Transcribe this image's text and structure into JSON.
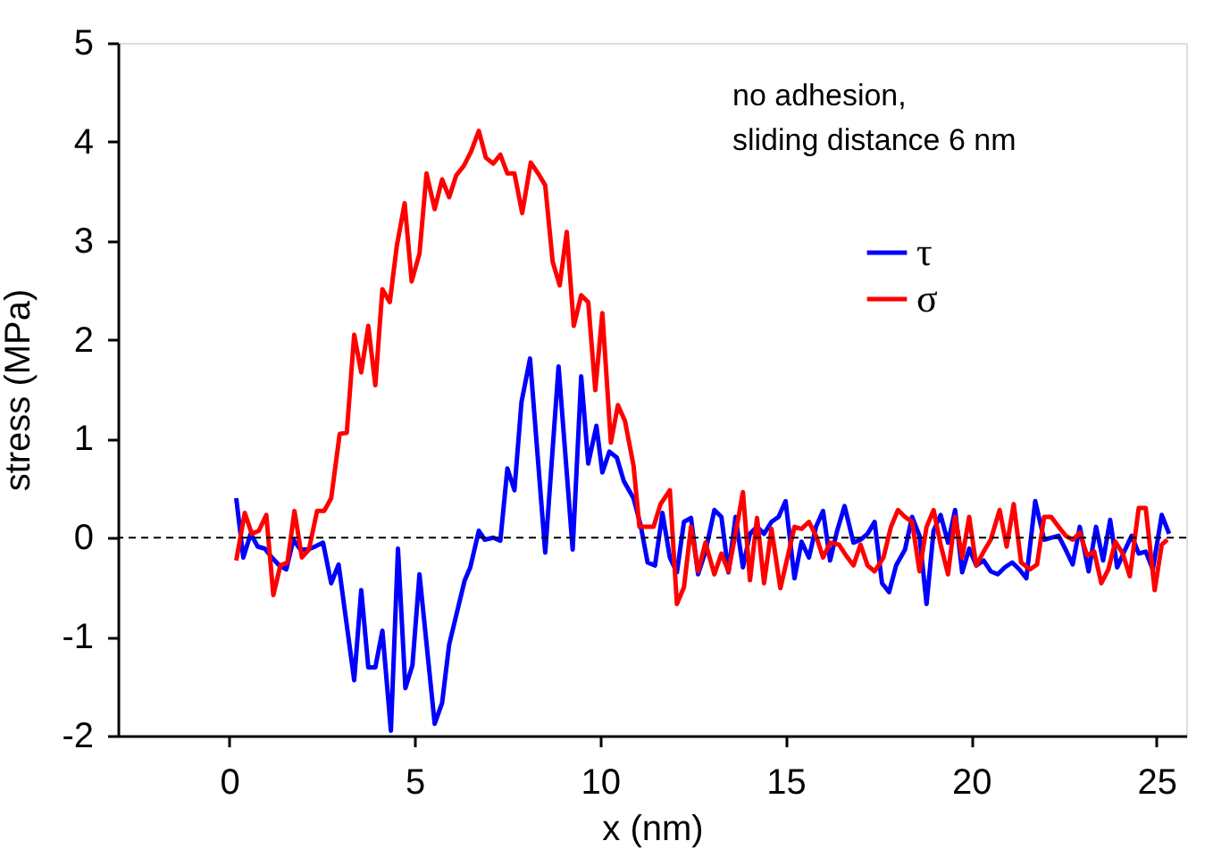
{
  "chart_data": {
    "type": "line",
    "xlabel": "x  (nm)",
    "ylabel": "stress  (MPa)",
    "xlim": [
      -3,
      25.8
    ],
    "xticks": [
      0,
      5,
      10,
      15,
      20,
      25
    ],
    "ylim": [
      -2,
      5
    ],
    "yticks": [
      -2,
      -1,
      0,
      1,
      2,
      3,
      4,
      5
    ],
    "grid": false,
    "legend": "top right",
    "line_style": "solid",
    "annotations": [
      "no adhesion,",
      "sliding distance 6 nm"
    ],
    "ref_lines": [
      {
        "axis": "y",
        "value": 0,
        "color": "#000000",
        "line_style": "dashed"
      }
    ],
    "series": [
      {
        "name": "τ",
        "color": "#0000ff",
        "x": [
          0.19,
          0.38,
          0.58,
          0.77,
          0.96,
          1.15,
          1.35,
          1.54,
          1.73,
          1.92,
          2.12,
          2.31,
          2.53,
          2.75,
          2.95,
          3.37,
          3.56,
          3.75,
          3.94,
          4.13,
          4.36,
          4.55,
          4.75,
          4.94,
          5.13,
          5.54,
          5.74,
          5.93,
          6.35,
          6.5,
          6.73,
          6.89,
          7.12,
          7.31,
          7.5,
          7.69,
          7.88,
          8.11,
          8.52,
          8.88,
          9.26,
          9.49,
          9.68,
          9.9,
          10.06,
          10.25,
          10.45,
          10.64,
          10.9,
          11.09,
          11.28,
          11.48,
          11.68,
          11.88,
          12.07,
          12.26,
          12.45,
          12.64,
          12.84,
          13.08,
          13.27,
          13.46,
          13.65,
          13.85,
          14.04,
          14.23,
          14.42,
          14.62,
          14.81,
          15.0,
          15.24,
          15.43,
          15.63,
          15.82,
          16.01,
          16.2,
          16.39,
          16.59,
          16.83,
          17.02,
          17.21,
          17.4,
          17.6,
          17.79,
          17.98,
          18.22,
          18.41,
          18.61,
          18.8,
          18.99,
          19.18,
          19.38,
          19.57,
          19.76,
          19.95,
          20.14,
          20.34,
          20.53,
          20.72,
          20.91,
          21.11,
          21.3,
          21.49,
          21.73,
          21.97,
          22.16,
          22.36,
          22.55,
          22.74,
          22.93,
          23.17,
          23.37,
          23.56,
          23.75,
          23.94,
          24.13,
          24.33,
          24.52,
          24.71,
          24.9,
          25.14,
          25.34
        ],
        "values": [
          0.4,
          -0.2,
          0.04,
          -0.09,
          -0.11,
          -0.2,
          -0.28,
          -0.32,
          -0.02,
          -0.12,
          -0.12,
          -0.09,
          -0.05,
          -0.46,
          -0.27,
          -1.44,
          -0.53,
          -1.31,
          -1.31,
          -0.94,
          -1.95,
          -0.11,
          -1.52,
          -1.29,
          -0.37,
          -1.88,
          -1.67,
          -1.08,
          -0.43,
          -0.3,
          0.07,
          -0.02,
          0.0,
          -0.03,
          0.7,
          0.48,
          1.37,
          1.81,
          -0.15,
          1.73,
          -0.12,
          1.63,
          0.75,
          1.13,
          0.66,
          0.87,
          0.81,
          0.57,
          0.4,
          0.13,
          -0.25,
          -0.28,
          0.25,
          -0.2,
          -0.35,
          0.16,
          0.2,
          -0.37,
          -0.14,
          0.28,
          0.21,
          -0.35,
          0.21,
          -0.3,
          0.04,
          0.11,
          0.04,
          0.16,
          0.21,
          0.37,
          -0.41,
          -0.04,
          -0.2,
          0.11,
          0.27,
          -0.23,
          0.07,
          0.32,
          -0.05,
          -0.02,
          0.04,
          0.16,
          -0.46,
          -0.55,
          -0.28,
          -0.12,
          0.21,
          0.02,
          -0.67,
          0.07,
          0.23,
          -0.05,
          0.28,
          -0.35,
          -0.11,
          -0.28,
          -0.23,
          -0.34,
          -0.37,
          -0.3,
          -0.25,
          -0.32,
          -0.41,
          0.37,
          -0.02,
          0.0,
          0.02,
          -0.12,
          -0.27,
          0.11,
          -0.34,
          0.11,
          -0.23,
          0.18,
          -0.3,
          -0.14,
          0.02,
          -0.16,
          -0.14,
          -0.32,
          0.23,
          0.04
        ]
      },
      {
        "name": "σ",
        "color": "#ff0000",
        "x": [
          0.19,
          0.42,
          0.61,
          0.8,
          1.0,
          1.19,
          1.38,
          1.57,
          1.76,
          1.96,
          2.15,
          2.37,
          2.56,
          2.75,
          2.98,
          3.17,
          3.37,
          3.56,
          3.75,
          3.94,
          4.13,
          4.33,
          4.52,
          4.73,
          4.92,
          5.13,
          5.32,
          5.54,
          5.74,
          5.93,
          6.12,
          6.33,
          6.52,
          6.73,
          6.92,
          7.12,
          7.31,
          7.5,
          7.69,
          7.9,
          8.13,
          8.33,
          8.52,
          8.72,
          8.91,
          9.1,
          9.29,
          9.49,
          9.68,
          9.87,
          10.06,
          10.29,
          10.48,
          10.67,
          10.9,
          11.06,
          11.44,
          11.63,
          11.88,
          12.07,
          12.26,
          12.45,
          12.64,
          12.84,
          13.08,
          13.27,
          13.46,
          13.65,
          13.85,
          14.04,
          14.23,
          14.42,
          14.62,
          14.86,
          15.05,
          15.24,
          15.43,
          15.63,
          15.82,
          16.01,
          16.2,
          16.44,
          16.63,
          16.83,
          17.02,
          17.21,
          17.4,
          17.64,
          17.84,
          18.03,
          18.22,
          18.41,
          18.61,
          18.8,
          18.99,
          19.18,
          19.38,
          19.57,
          19.76,
          19.95,
          20.14,
          20.34,
          20.53,
          20.77,
          20.96,
          21.15,
          21.35,
          21.59,
          21.78,
          21.97,
          22.16,
          22.36,
          22.55,
          22.74,
          22.93,
          23.13,
          23.32,
          23.51,
          23.7,
          23.89,
          24.09,
          24.28,
          24.52,
          24.71,
          24.95,
          25.14,
          25.29
        ],
        "values": [
          -0.23,
          0.25,
          0.04,
          0.07,
          0.23,
          -0.58,
          -0.28,
          -0.25,
          0.27,
          -0.2,
          -0.12,
          0.27,
          0.27,
          0.4,
          1.05,
          1.06,
          2.05,
          1.67,
          2.14,
          1.54,
          2.51,
          2.38,
          2.95,
          3.38,
          2.59,
          2.87,
          3.68,
          3.32,
          3.62,
          3.44,
          3.66,
          3.76,
          3.9,
          4.11,
          3.84,
          3.78,
          3.87,
          3.68,
          3.68,
          3.28,
          3.79,
          3.68,
          3.56,
          2.79,
          2.55,
          3.09,
          2.14,
          2.45,
          2.38,
          1.49,
          2.27,
          0.96,
          1.34,
          1.18,
          0.73,
          0.11,
          0.11,
          0.34,
          0.48,
          -0.67,
          -0.5,
          0.11,
          -0.34,
          -0.05,
          -0.37,
          -0.16,
          -0.34,
          0.04,
          0.46,
          -0.43,
          0.2,
          -0.46,
          0.09,
          -0.51,
          -0.2,
          0.11,
          0.09,
          0.16,
          0.02,
          -0.2,
          -0.05,
          -0.07,
          -0.18,
          -0.28,
          -0.07,
          -0.28,
          -0.34,
          -0.2,
          0.11,
          0.28,
          0.21,
          0.16,
          -0.34,
          0.11,
          0.28,
          -0.07,
          -0.37,
          0.21,
          -0.2,
          0.21,
          -0.28,
          -0.14,
          -0.02,
          0.28,
          -0.09,
          0.34,
          -0.25,
          -0.32,
          -0.27,
          0.21,
          0.21,
          0.11,
          0.02,
          -0.02,
          0.05,
          -0.18,
          -0.14,
          -0.46,
          -0.32,
          -0.04,
          -0.16,
          -0.39,
          0.3,
          0.3,
          -0.53,
          -0.07,
          -0.02
        ]
      }
    ]
  }
}
